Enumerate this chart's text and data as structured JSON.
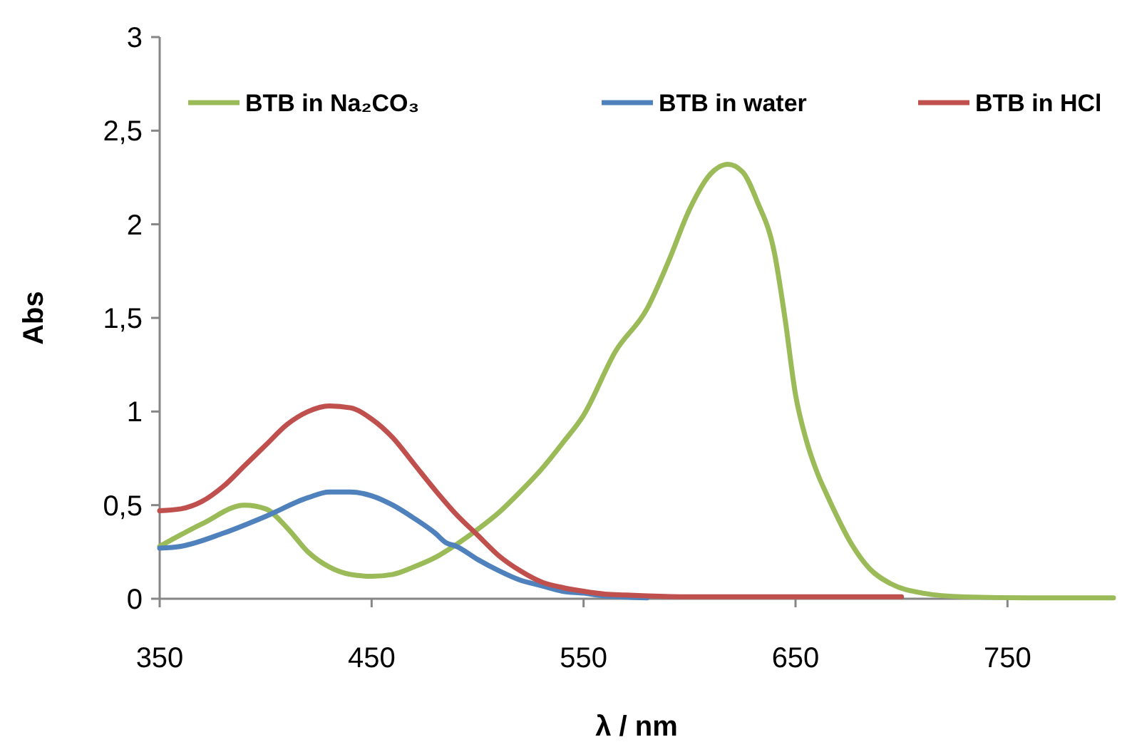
{
  "chart_data": {
    "type": "line",
    "xlabel": "λ / nm",
    "ylabel": "Abs",
    "xlim": [
      350,
      800
    ],
    "xticks": [
      350,
      450,
      550,
      650,
      750
    ],
    "ylim": [
      0,
      3
    ],
    "yticks": [
      0,
      {
        "value": 0.5,
        "label": "0,5"
      },
      1,
      {
        "value": 1.5,
        "label": "1,5"
      },
      2,
      {
        "value": 2.5,
        "label": "2,5"
      },
      3
    ],
    "grid": false,
    "legend": "top",
    "marker": "none",
    "line_style": "solid",
    "series": [
      {
        "name": "BTB in Na₂CO₃",
        "color": "#9bbb59",
        "x": [
          350,
          370,
          390,
          400,
          410,
          420,
          430,
          440,
          450,
          460,
          470,
          480,
          490,
          500,
          510,
          520,
          530,
          540,
          550,
          565,
          580,
          590,
          600,
          610,
          618,
          625,
          632,
          640,
          645,
          650,
          655,
          660,
          665,
          670,
          675,
          685,
          695,
          710,
          730,
          760,
          800
        ],
        "values": [
          0.28,
          0.4,
          0.5,
          0.48,
          0.38,
          0.25,
          0.17,
          0.13,
          0.12,
          0.13,
          0.17,
          0.22,
          0.29,
          0.37,
          0.46,
          0.57,
          0.69,
          0.83,
          0.98,
          1.32,
          1.55,
          1.8,
          2.08,
          2.27,
          2.32,
          2.28,
          2.12,
          1.85,
          1.5,
          1.09,
          0.85,
          0.68,
          0.55,
          0.43,
          0.32,
          0.16,
          0.08,
          0.03,
          0.01,
          0.005,
          0.005
        ]
      },
      {
        "name": "BTB in water",
        "color": "#4f81bd",
        "x": [
          350,
          360,
          380,
          400,
          420,
          430,
          440,
          450,
          460,
          470,
          480,
          485,
          490,
          500,
          510,
          520,
          530,
          540,
          550,
          560,
          580
        ],
        "values": [
          0.27,
          0.28,
          0.35,
          0.44,
          0.54,
          0.57,
          0.57,
          0.55,
          0.5,
          0.43,
          0.35,
          0.3,
          0.28,
          0.21,
          0.15,
          0.1,
          0.07,
          0.04,
          0.03,
          0.015,
          0.005
        ]
      },
      {
        "name": "BTB in HCl",
        "color": "#c0504d",
        "x": [
          350,
          360,
          370,
          380,
          390,
          400,
          410,
          420,
          430,
          440,
          450,
          460,
          470,
          480,
          490,
          500,
          510,
          520,
          530,
          540,
          550,
          560,
          570,
          580,
          600,
          700
        ],
        "values": [
          0.47,
          0.48,
          0.52,
          0.6,
          0.71,
          0.82,
          0.93,
          1.0,
          1.03,
          1.02,
          0.96,
          0.86,
          0.72,
          0.58,
          0.45,
          0.34,
          0.23,
          0.15,
          0.09,
          0.06,
          0.04,
          0.025,
          0.02,
          0.015,
          0.01,
          0.01
        ]
      }
    ]
  }
}
